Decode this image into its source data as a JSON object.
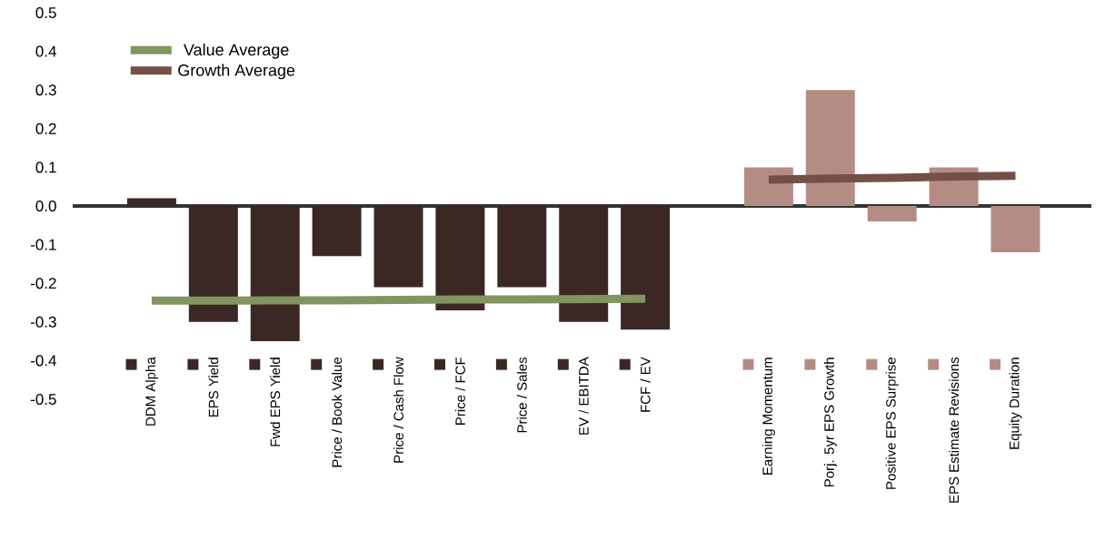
{
  "chart_data": {
    "type": "bar",
    "categories": [
      "DDM Alpha",
      "EPS Yield",
      "Fwd EPS Yield",
      "Price / Book Value",
      "Price / Cash Flow",
      "Price / FCF",
      "Price / Sales",
      "EV / EBITDA",
      "FCF / EV",
      null,
      "Earning Momentum",
      "Porj. 5yr EPS Growth",
      "Positive EPS Surprise",
      "EPS Estimate Revisions",
      "Equity Duration"
    ],
    "series": [
      {
        "values": [
          0.02,
          -0.3,
          -0.35,
          -0.13,
          -0.21,
          -0.27,
          -0.21,
          -0.3,
          -0.32,
          null,
          0.1,
          0.3,
          -0.04,
          0.1,
          -0.12
        ],
        "colors": [
          "#3b2825",
          "#3b2825",
          "#3b2825",
          "#3b2825",
          "#3b2825",
          "#3b2825",
          "#3b2825",
          "#3b2825",
          "#3b2825",
          null,
          "#b48c84",
          "#b48c84",
          "#b48c84",
          "#b48c84",
          "#b48c84"
        ]
      },
      {
        "type": "line",
        "name": "Value Average",
        "color": "#82945f",
        "values": [
          -0.245,
          -0.245,
          -0.244,
          -0.244,
          -0.243,
          -0.242,
          -0.242,
          -0.241,
          -0.24,
          null,
          null,
          null,
          null,
          null,
          null
        ]
      },
      {
        "type": "line",
        "name": "Growth Average",
        "color": "#744f47",
        "values": [
          null,
          null,
          null,
          null,
          null,
          null,
          null,
          null,
          null,
          null,
          0.068,
          0.071,
          0.073,
          0.076,
          0.078
        ]
      }
    ],
    "ylim": [
      -0.5,
      0.5
    ],
    "yticks": [
      0.5,
      0.4,
      0.3,
      0.2,
      0.1,
      {
        "value": 0,
        "label": "0.0"
      },
      -0.1,
      -0.2,
      -0.3,
      -0.4,
      -0.5
    ],
    "legend": "top left"
  }
}
